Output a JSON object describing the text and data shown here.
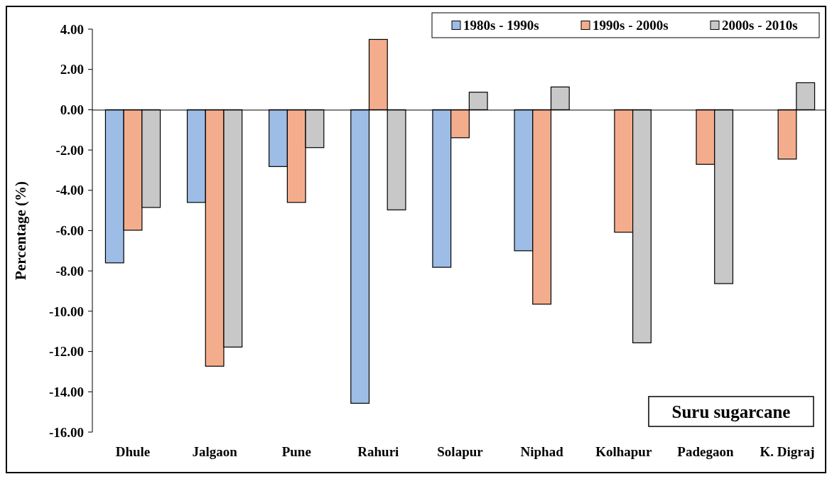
{
  "chart_data": {
    "type": "bar",
    "ylabel": "Percentage (%)",
    "categories": [
      "Dhule",
      "Jalgaon",
      "Pune",
      "Rahuri",
      "Solapur",
      "Niphad",
      "Kolhapur",
      "Padegaon",
      "K. Digraj"
    ],
    "series": [
      {
        "name": "1980s - 1990s",
        "color": "#9dbde6",
        "values": [
          -7.6,
          -4.6,
          -2.82,
          -14.57,
          -7.82,
          -7.0,
          null,
          null,
          null
        ]
      },
      {
        "name": "1990s - 2000s",
        "color": "#f4ad8c",
        "values": [
          -5.98,
          -12.73,
          -4.6,
          3.49,
          -1.39,
          -9.65,
          -6.08,
          -2.71,
          -2.45
        ]
      },
      {
        "name": "2000s - 2010s",
        "color": "#c8c8c8",
        "values": [
          -4.85,
          -11.78,
          -1.88,
          -4.97,
          0.87,
          1.13,
          -11.57,
          -8.63,
          1.34
        ]
      }
    ],
    "ylim": [
      -16,
      4
    ],
    "yticks": [
      {
        "value": 4,
        "label": "4.00"
      },
      {
        "value": 2,
        "label": "2.00"
      },
      {
        "value": 0,
        "label": "0.00"
      },
      {
        "value": -2,
        "label": "-2.00"
      },
      {
        "value": -4,
        "label": "-4.00"
      },
      {
        "value": -6,
        "label": "-6.00"
      },
      {
        "value": -8,
        "label": "-8.00"
      },
      {
        "value": -10,
        "label": "-10.00"
      },
      {
        "value": -12,
        "label": "-12.00"
      },
      {
        "value": -14,
        "label": "-14.00"
      },
      {
        "value": -16,
        "label": "-16.00"
      }
    ],
    "annotations": [
      "Suru sugarcane"
    ],
    "legend": "top right"
  }
}
